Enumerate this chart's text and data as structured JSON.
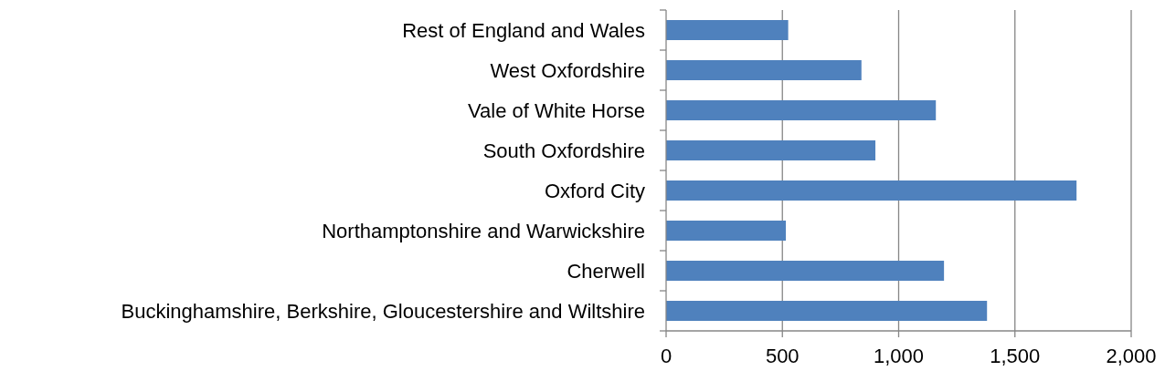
{
  "chart_data": {
    "type": "bar",
    "orientation": "horizontal",
    "categories": [
      "Rest of England and Wales",
      "West Oxfordshire",
      "Vale of White Horse",
      "South Oxfordshire",
      "Oxford City",
      "Northamptonshire and Warwickshire",
      "Cherwell",
      "Buckinghamshire, Berkshire, Gloucestershire and Wiltshire"
    ],
    "values": [
      525,
      840,
      1160,
      900,
      1765,
      515,
      1195,
      1380
    ],
    "color": "#4f81bd",
    "xlim": [
      0,
      2000
    ],
    "xticks": [
      0,
      {
        "value": 500,
        "label": "500"
      },
      {
        "value": 1000,
        "label": "1,000"
      },
      {
        "value": 1500,
        "label": "1,500"
      },
      {
        "value": 2000,
        "label": "2,000"
      }
    ],
    "grid": "x"
  }
}
